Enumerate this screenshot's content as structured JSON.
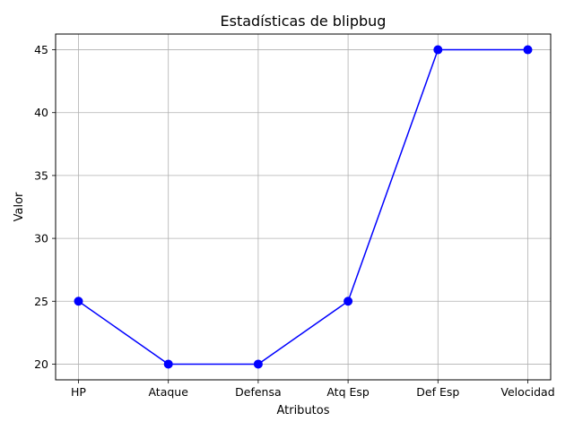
{
  "chart_data": {
    "type": "line",
    "title": "Estadísticas de blipbug",
    "xlabel": "Atributos",
    "ylabel": "Valor",
    "categories": [
      "HP",
      "Ataque",
      "Defensa",
      "Atq Esp",
      "Def Esp",
      "Velocidad"
    ],
    "series": [
      {
        "values": [
          25,
          20,
          20,
          25,
          45,
          45
        ]
      }
    ],
    "ylim": [
      18.75,
      46.25
    ],
    "yticks": [
      20,
      25,
      30,
      35,
      40,
      45
    ],
    "grid": true,
    "line_color": "#0000ff",
    "marker": "circle"
  }
}
